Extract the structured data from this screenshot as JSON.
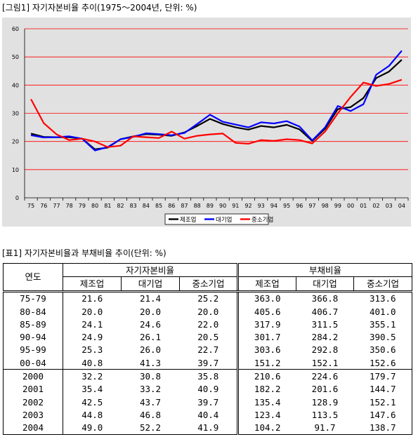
{
  "figure_title": "[그림1] 자기자본비율 추이(1975～2004년, 단위: %)",
  "table_title": "[표1] 자기자본비율과 부채비율 추이(단위: %)",
  "chart_data": {
    "type": "line",
    "title": "",
    "xlabel": "",
    "ylabel": "",
    "categories": [
      "75",
      "76",
      "77",
      "78",
      "79",
      "80",
      "81",
      "82",
      "83",
      "84",
      "85",
      "86",
      "87",
      "88",
      "89",
      "90",
      "91",
      "92",
      "93",
      "94",
      "95",
      "96",
      "97",
      "98",
      "99",
      "00",
      "01",
      "02",
      "03",
      "04"
    ],
    "ylim": [
      0,
      60
    ],
    "yticks": [
      0,
      10,
      20,
      30,
      40,
      50,
      60
    ],
    "grid": true,
    "legend_position": "bottom",
    "series": [
      {
        "name": "제조업",
        "color": "#000000",
        "values": [
          22.8,
          21.6,
          21.5,
          21.5,
          21.0,
          17.2,
          17.8,
          20.8,
          21.8,
          22.6,
          22.4,
          22.0,
          23.2,
          25.5,
          28.0,
          26.2,
          25.0,
          24.2,
          25.5,
          25.0,
          25.9,
          24.3,
          20.2,
          24.5,
          31.5,
          32.2,
          35.4,
          42.5,
          44.8,
          49.0
        ]
      },
      {
        "name": "대기업",
        "color": "#0000ff",
        "values": [
          22.2,
          21.4,
          21.5,
          21.8,
          21.0,
          16.8,
          18.0,
          20.8,
          21.6,
          22.9,
          22.6,
          22.2,
          23.0,
          26.2,
          29.5,
          27.0,
          26.0,
          25.0,
          26.8,
          26.4,
          27.2,
          25.3,
          20.4,
          25.0,
          32.6,
          30.8,
          33.2,
          43.7,
          46.8,
          52.2
        ]
      },
      {
        "name": "중소기업",
        "color": "#ff0000",
        "values": [
          35.0,
          26.5,
          22.5,
          20.5,
          21.0,
          20.0,
          18.0,
          18.5,
          21.8,
          21.5,
          21.2,
          23.5,
          21.0,
          22.0,
          22.5,
          22.8,
          19.5,
          19.2,
          20.5,
          20.2,
          20.8,
          20.5,
          19.3,
          23.5,
          30.0,
          35.8,
          40.9,
          39.7,
          40.4,
          41.9
        ]
      }
    ]
  },
  "table": {
    "corner": "연도",
    "group1": "자기자본비율",
    "group2": "부채비율",
    "subheaders": [
      "제조업",
      "대기업",
      "중소기업",
      "제조업",
      "대기업",
      "중소기업"
    ],
    "rows": [
      [
        "75-79",
        "21.6",
        "21.4",
        "25.2",
        "363.0",
        "366.8",
        "313.6"
      ],
      [
        "80-84",
        "20.0",
        "20.0",
        "20.0",
        "405.6",
        "406.7",
        "401.0"
      ],
      [
        "85-89",
        "24.1",
        "24.6",
        "22.0",
        "317.9",
        "311.5",
        "355.1"
      ],
      [
        "90-94",
        "24.9",
        "26.1",
        "20.5",
        "301.7",
        "284.2",
        "390.5"
      ],
      [
        "95-99",
        "25.3",
        "26.0",
        "22.7",
        "303.6",
        "292.8",
        "350.6"
      ],
      [
        "00-04",
        "40.8",
        "41.3",
        "39.7",
        "151.2",
        "152.1",
        "152.6"
      ],
      [
        "2000",
        "32.2",
        "30.8",
        "35.8",
        "210.6",
        "224.6",
        "179.7"
      ],
      [
        "2001",
        "35.4",
        "33.2",
        "40.9",
        "182.2",
        "201.6",
        "144.7"
      ],
      [
        "2002",
        "42.5",
        "43.7",
        "39.7",
        "135.4",
        "128.9",
        "152.1"
      ],
      [
        "2003",
        "44.8",
        "46.8",
        "40.4",
        "123.4",
        "113.5",
        "147.6"
      ],
      [
        "2004",
        "49.0",
        "52.2",
        "41.9",
        "104.2",
        "91.7",
        "138.7"
      ]
    ]
  }
}
